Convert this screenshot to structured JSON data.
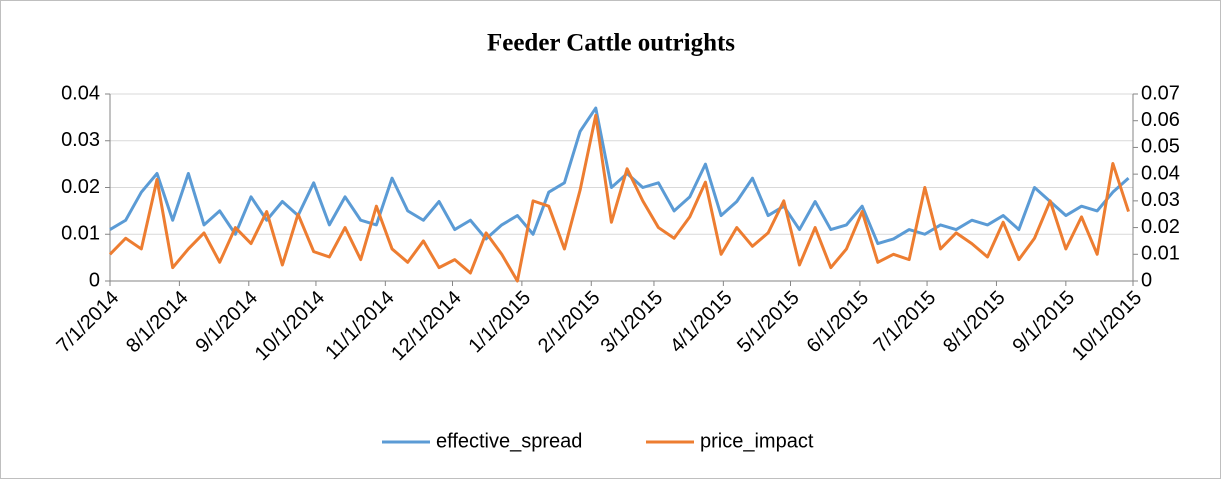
{
  "chart_data": {
    "type": "line",
    "title": "Feeder Cattle outrights",
    "x": [
      "7/1/2014",
      "7/8/2014",
      "7/15/2014",
      "7/22/2014",
      "7/29/2014",
      "8/5/2014",
      "8/12/2014",
      "8/19/2014",
      "8/26/2014",
      "9/2/2014",
      "9/9/2014",
      "9/16/2014",
      "9/23/2014",
      "9/30/2014",
      "10/7/2014",
      "10/14/2014",
      "10/21/2014",
      "10/28/2014",
      "11/4/2014",
      "11/11/2014",
      "11/18/2014",
      "11/25/2014",
      "12/2/2014",
      "12/9/2014",
      "12/16/2014",
      "12/23/2014",
      "12/30/2014",
      "1/6/2015",
      "1/13/2015",
      "1/20/2015",
      "1/27/2015",
      "2/3/2015",
      "2/10/2015",
      "2/17/2015",
      "2/24/2015",
      "3/3/2015",
      "3/10/2015",
      "3/17/2015",
      "3/24/2015",
      "3/31/2015",
      "4/7/2015",
      "4/14/2015",
      "4/21/2015",
      "4/28/2015",
      "5/5/2015",
      "5/12/2015",
      "5/19/2015",
      "5/26/2015",
      "6/2/2015",
      "6/9/2015",
      "6/16/2015",
      "6/23/2015",
      "6/30/2015",
      "7/7/2015",
      "7/14/2015",
      "7/21/2015",
      "7/28/2015",
      "8/4/2015",
      "8/11/2015",
      "8/18/2015",
      "8/25/2015",
      "9/1/2015",
      "9/8/2015",
      "9/15/2015",
      "9/22/2015",
      "9/29/2015"
    ],
    "series": [
      {
        "name": "effective_spread",
        "color": "#5b9bd5",
        "axis": "y",
        "values": [
          0.011,
          0.013,
          0.019,
          0.023,
          0.013,
          0.023,
          0.012,
          0.015,
          0.01,
          0.018,
          0.013,
          0.017,
          0.014,
          0.021,
          0.012,
          0.018,
          0.013,
          0.012,
          0.022,
          0.015,
          0.013,
          0.017,
          0.011,
          0.013,
          0.009,
          0.012,
          0.014,
          0.01,
          0.019,
          0.021,
          0.032,
          0.037,
          0.02,
          0.023,
          0.02,
          0.021,
          0.015,
          0.018,
          0.025,
          0.014,
          0.017,
          0.022,
          0.014,
          0.016,
          0.011,
          0.017,
          0.011,
          0.012,
          0.016,
          0.008,
          0.009,
          0.011,
          0.01,
          0.012,
          0.011,
          0.013,
          0.012,
          0.014,
          0.011,
          0.02,
          0.017,
          0.014,
          0.016,
          0.015,
          0.019,
          0.022
        ]
      },
      {
        "name": "price_impact",
        "color": "#ed7d31",
        "axis": "y2",
        "values": [
          0.01,
          0.016,
          0.012,
          0.038,
          0.005,
          0.012,
          0.018,
          0.007,
          0.02,
          0.014,
          0.026,
          0.006,
          0.025,
          0.011,
          0.009,
          0.02,
          0.008,
          0.028,
          0.012,
          0.007,
          0.015,
          0.005,
          0.008,
          0.003,
          0.018,
          0.01,
          0.0,
          0.03,
          0.028,
          0.012,
          0.034,
          0.062,
          0.022,
          0.042,
          0.03,
          0.02,
          0.016,
          0.024,
          0.037,
          0.01,
          0.02,
          0.013,
          0.018,
          0.03,
          0.006,
          0.02,
          0.005,
          0.012,
          0.026,
          0.007,
          0.01,
          0.008,
          0.035,
          0.012,
          0.018,
          0.014,
          0.009,
          0.022,
          0.008,
          0.016,
          0.03,
          0.012,
          0.024,
          0.01,
          0.044,
          0.026
        ]
      }
    ],
    "xlim": [
      "7/1/2014",
      "10/1/2015"
    ],
    "xticks": [
      "7/1/2014",
      "8/1/2014",
      "9/1/2014",
      "10/1/2014",
      "11/1/2014",
      "12/1/2014",
      "1/1/2015",
      "2/1/2015",
      "3/1/2015",
      "4/1/2015",
      "5/1/2015",
      "6/1/2015",
      "7/1/2015",
      "8/1/2015",
      "9/1/2015",
      "10/1/2015"
    ],
    "ylim": [
      0,
      0.04
    ],
    "yticks": [
      0,
      0.01,
      0.02,
      0.03,
      0.04
    ],
    "y2lim": [
      0,
      0.07
    ],
    "y2ticks": [
      0,
      0.01,
      0.02,
      0.03,
      0.04,
      0.05,
      0.06,
      0.07
    ],
    "grid": true,
    "legend": "bottom"
  }
}
